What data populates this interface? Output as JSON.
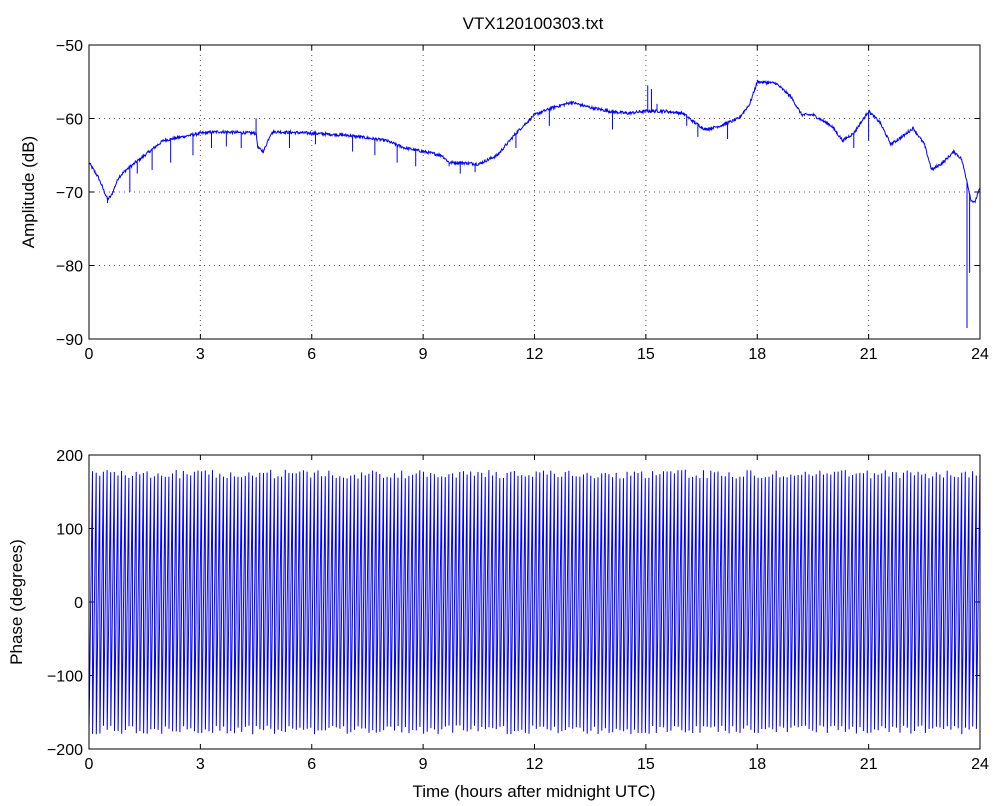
{
  "figure": {
    "title": "VTX120100303.txt"
  },
  "chart_data": [
    {
      "type": "line",
      "title": "VTX120100303.txt",
      "xlabel": "",
      "ylabel": "Amplitude (dB)",
      "xlim": [
        0,
        24
      ],
      "ylim": [
        -90,
        -50
      ],
      "xticks": [
        0,
        3,
        6,
        9,
        12,
        15,
        18,
        21,
        24
      ],
      "yticks": [
        -90,
        -80,
        -70,
        -60,
        -50
      ],
      "ytick_labels": [
        "−90",
        "−80",
        "−70",
        "−60",
        "−50"
      ],
      "grid": true,
      "line_color": "#0000ff",
      "x": [
        0,
        0.25,
        0.5,
        0.6,
        0.8,
        1.0,
        1.5,
        2.0,
        2.5,
        3.0,
        3.5,
        4.0,
        4.5,
        4.55,
        4.7,
        4.9,
        5.0,
        6.0,
        7.0,
        8.0,
        8.5,
        9.0,
        9.5,
        9.7,
        10.0,
        10.5,
        11.0,
        11.5,
        12.0,
        12.5,
        13.0,
        13.5,
        14.0,
        14.5,
        15.0,
        15.5,
        16.0,
        16.3,
        16.6,
        17.0,
        17.5,
        17.8,
        18.0,
        18.5,
        18.9,
        19.2,
        19.5,
        20.0,
        20.3,
        20.6,
        21.0,
        21.3,
        21.6,
        21.9,
        22.2,
        22.5,
        22.7,
        23.0,
        23.3,
        23.5,
        23.65,
        23.75,
        23.85,
        24.0
      ],
      "y": [
        -66,
        -68,
        -71,
        -70.5,
        -68,
        -67,
        -65,
        -63,
        -62.5,
        -62,
        -61.8,
        -61.9,
        -62,
        -64,
        -64.5,
        -62,
        -61.8,
        -62,
        -62.3,
        -63,
        -64,
        -64.5,
        -65,
        -66,
        -66,
        -66.2,
        -65,
        -62,
        -59.5,
        -58.5,
        -57.8,
        -58.5,
        -59,
        -59.3,
        -59,
        -59,
        -59.3,
        -60.5,
        -61.5,
        -61,
        -60,
        -58,
        -55,
        -55.2,
        -57,
        -59.5,
        -59.5,
        -61,
        -63,
        -62,
        -59,
        -60.5,
        -63.5,
        -62.5,
        -61.3,
        -63.5,
        -67,
        -66,
        -64.5,
        -65.5,
        -68.5,
        -71,
        -71.5,
        -69.5
      ],
      "spikes": [
        {
          "x": 0.5,
          "y": -71.5
        },
        {
          "x": 1.1,
          "y": -70
        },
        {
          "x": 1.3,
          "y": -67.5
        },
        {
          "x": 1.7,
          "y": -67
        },
        {
          "x": 2.2,
          "y": -66
        },
        {
          "x": 2.8,
          "y": -65
        },
        {
          "x": 3.3,
          "y": -64
        },
        {
          "x": 3.7,
          "y": -63.8
        },
        {
          "x": 4.1,
          "y": -64
        },
        {
          "x": 4.5,
          "y": -60
        },
        {
          "x": 5.4,
          "y": -64
        },
        {
          "x": 6.1,
          "y": -63.5
        },
        {
          "x": 7.1,
          "y": -64.5
        },
        {
          "x": 7.7,
          "y": -65
        },
        {
          "x": 8.3,
          "y": -66
        },
        {
          "x": 8.8,
          "y": -66.5
        },
        {
          "x": 9.7,
          "y": -66.5
        },
        {
          "x": 10.0,
          "y": -67.5
        },
        {
          "x": 10.4,
          "y": -67.3
        },
        {
          "x": 11.5,
          "y": -64
        },
        {
          "x": 12.4,
          "y": -61
        },
        {
          "x": 14.1,
          "y": -61.5
        },
        {
          "x": 15.05,
          "y": -55.5
        },
        {
          "x": 15.15,
          "y": -56
        },
        {
          "x": 15.3,
          "y": -58
        },
        {
          "x": 16.1,
          "y": -61
        },
        {
          "x": 16.4,
          "y": -62.5
        },
        {
          "x": 17.2,
          "y": -62.8
        },
        {
          "x": 20.6,
          "y": -64
        },
        {
          "x": 21.0,
          "y": -63
        },
        {
          "x": 23.65,
          "y": -88.5
        },
        {
          "x": 23.72,
          "y": -81
        }
      ]
    },
    {
      "type": "line",
      "title": "",
      "xlabel": "Time (hours after midnight UTC)",
      "ylabel": "Phase (degrees)",
      "xlim": [
        0,
        24
      ],
      "ylim": [
        -200,
        200
      ],
      "xticks": [
        0,
        3,
        6,
        9,
        12,
        15,
        18,
        21,
        24
      ],
      "yticks": [
        -200,
        -100,
        0,
        100,
        200
      ],
      "ytick_labels": [
        "−200",
        "−100",
        "0",
        "100",
        "200"
      ],
      "grid": false,
      "line_color": "#0000ff",
      "wrap_range": [
        -180,
        180
      ],
      "cycles_per_hour": 10.2,
      "n_cycles": 245
    }
  ]
}
